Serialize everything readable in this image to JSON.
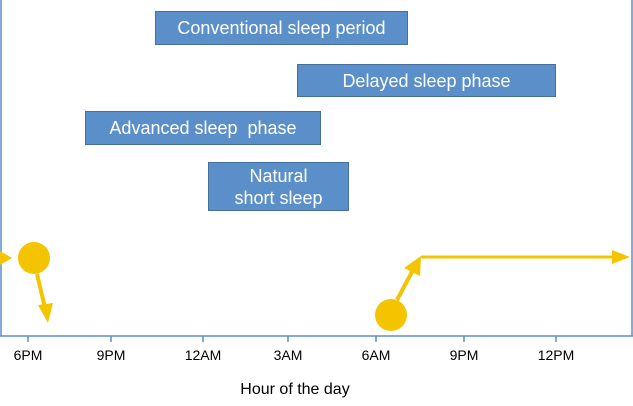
{
  "bars": [
    {
      "label": "Conventional sleep period"
    },
    {
      "label": "Delayed sleep phase"
    },
    {
      "label": "Advanced sleep  phase"
    },
    {
      "label": "Natural short sleep"
    }
  ],
  "axis": {
    "ticks": [
      "6PM",
      "9PM",
      "12AM",
      "3AM",
      "6AM",
      "9PM",
      "12PM"
    ],
    "xlabel": "Hour of the day"
  },
  "colors": {
    "bar_fill": "#5b8fc9",
    "sun": "#f5c400",
    "axis_line": "#5b8fc9"
  },
  "icons": [
    "sunset-icon",
    "sunrise-icon"
  ]
}
